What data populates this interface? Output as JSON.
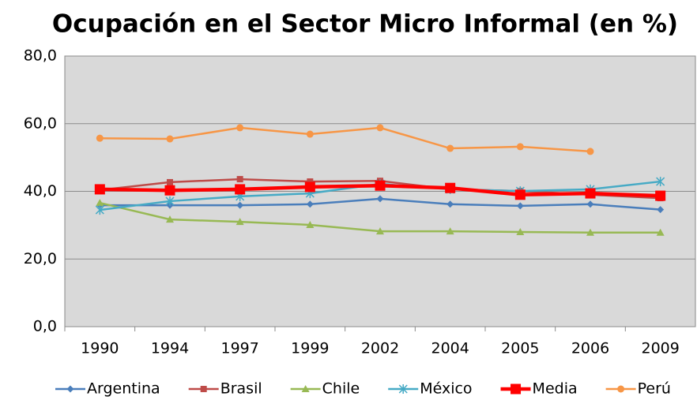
{
  "chart_data": {
    "type": "line",
    "title": "Ocupación en el Sector Micro Informal (en %)",
    "categories": [
      "1990",
      "1994",
      "1997",
      "1999",
      "2002",
      "2004",
      "2005",
      "2006",
      "2009"
    ],
    "ylim": [
      0,
      80
    ],
    "yticks": [
      {
        "value": 0,
        "label": "0,0"
      },
      {
        "value": 20,
        "label": "20,0"
      },
      {
        "value": 40,
        "label": "40,0"
      },
      {
        "value": 60,
        "label": "60,0"
      },
      {
        "value": 80,
        "label": "80,0"
      }
    ],
    "grid": true,
    "legend": "bottom",
    "series": [
      {
        "name": "Argentina",
        "color": "#4a7ebb",
        "marker": "diamond",
        "values": [
          35.9,
          35.9,
          35.9,
          36.2,
          37.8,
          36.2,
          35.7,
          36.2,
          34.6
        ]
      },
      {
        "name": "Brasil",
        "color": "#be4b48",
        "marker": "square",
        "values": [
          40.4,
          42.7,
          43.6,
          42.9,
          43.1,
          40.6,
          40.1,
          39.0,
          38.0
        ]
      },
      {
        "name": "Chile",
        "color": "#98b954",
        "marker": "triangle",
        "values": [
          36.6,
          31.7,
          31.0,
          30.1,
          28.2,
          28.2,
          28.0,
          27.8,
          27.8
        ]
      },
      {
        "name": "México",
        "color": "#46aac5",
        "marker": "star",
        "values": [
          34.5,
          37.1,
          38.5,
          39.4,
          42.2,
          40.6,
          40.1,
          40.6,
          42.9
        ]
      },
      {
        "name": "Media",
        "color": "#ff0000",
        "marker": "bigsquare",
        "values": [
          40.6,
          40.3,
          40.6,
          41.3,
          41.7,
          41.0,
          39.0,
          39.4,
          38.7
        ]
      },
      {
        "name": "Perú",
        "color": "#f79646",
        "marker": "circle",
        "values": [
          55.7,
          55.5,
          58.8,
          56.9,
          58.8,
          52.7,
          53.2,
          51.8,
          null
        ]
      }
    ]
  }
}
